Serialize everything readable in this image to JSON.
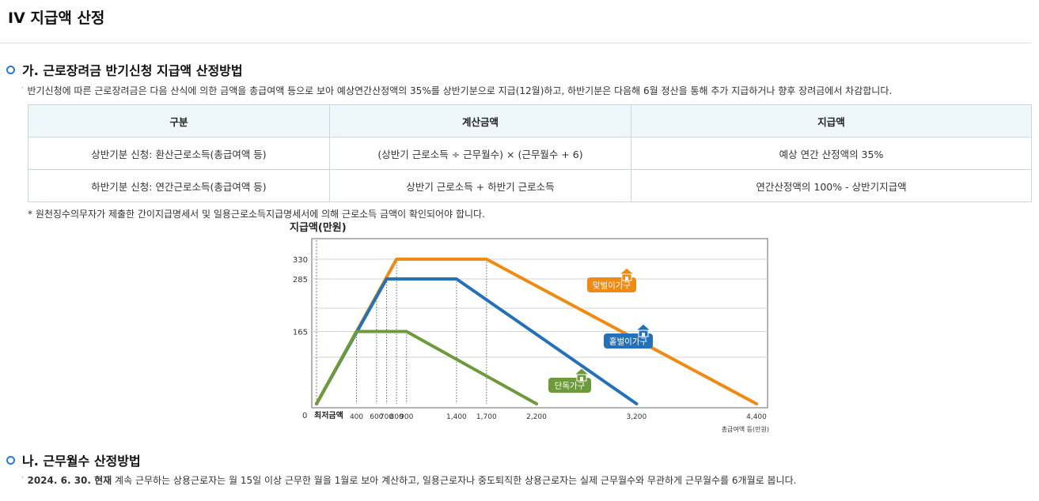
{
  "page": {
    "title": "IV 지급액 산정"
  },
  "section_a": {
    "heading": "가. 근로장려금 반기신청 지급액 산정방법",
    "description": "반기신청에 따른 근로장려금은 다음 산식에 의한 금액을 총급여액 등으로 보아 예상연간산정액의 35%를 상반기분으로 지급(12월)하고, 하반기분은 다음해 6월 정산을 통해 추가 지급하거나 향후 장려금에서 차감합니다.",
    "table": {
      "headers": [
        "구분",
        "계산금액",
        "지급액"
      ],
      "rows": [
        [
          "상반기분 신청: 환산근로소득(총급여액 등)",
          "(상반기 근로소득 ÷ 근무월수) × (근무월수 + 6)",
          "예상 연간 산정액의 35%"
        ],
        [
          "하반기분 신청: 연간근로소득(총급여액 등)",
          "상반기 근로소득 + 하반기 근로소득",
          "연간산정액의 100% - 상반기지급액"
        ]
      ]
    },
    "footnote": "* 원천징수의무자가 제출한 간이지급명세서 및 일용근로소득지급명세서에 의해 근로소득 금액이 확인되어야 합니다."
  },
  "chart_data": {
    "type": "line",
    "ylabel": "지급액(만원)",
    "xlabel": "총급여액 등(만원)",
    "origin_label": "0",
    "min_label": "최저금액",
    "x_ticks": [
      400,
      600,
      700,
      800,
      900,
      1400,
      1700,
      2200,
      3200,
      4400
    ],
    "y_ticks": [
      165,
      285,
      330
    ],
    "xlim": [
      0,
      4400
    ],
    "ylim": [
      0,
      400
    ],
    "grid": true,
    "series": [
      {
        "name": "맞벌이가구",
        "color": "#ef8a12",
        "x": [
          0,
          800,
          1700,
          4400
        ],
        "y": [
          0,
          330,
          330,
          0
        ]
      },
      {
        "name": "홑벌이가구",
        "color": "#2471b8",
        "x": [
          0,
          700,
          1400,
          3200
        ],
        "y": [
          0,
          285,
          285,
          0
        ]
      },
      {
        "name": "단독가구",
        "color": "#6d9a3a",
        "x": [
          0,
          400,
          900,
          2200
        ],
        "y": [
          0,
          165,
          165,
          0
        ]
      }
    ]
  },
  "section_b": {
    "heading": "나. 근무월수 산정방법",
    "description_bold": "2024. 6. 30. 현재",
    "description": " 계속 근무하는 상용근로자는 월 15일 이상 근무한 월을 1월로 보아 계산하고, 일용근로자나 중도퇴직한 상용근로자는 실제 근무월수와 무관하게 근무월수를 6개월로 봅니다."
  }
}
